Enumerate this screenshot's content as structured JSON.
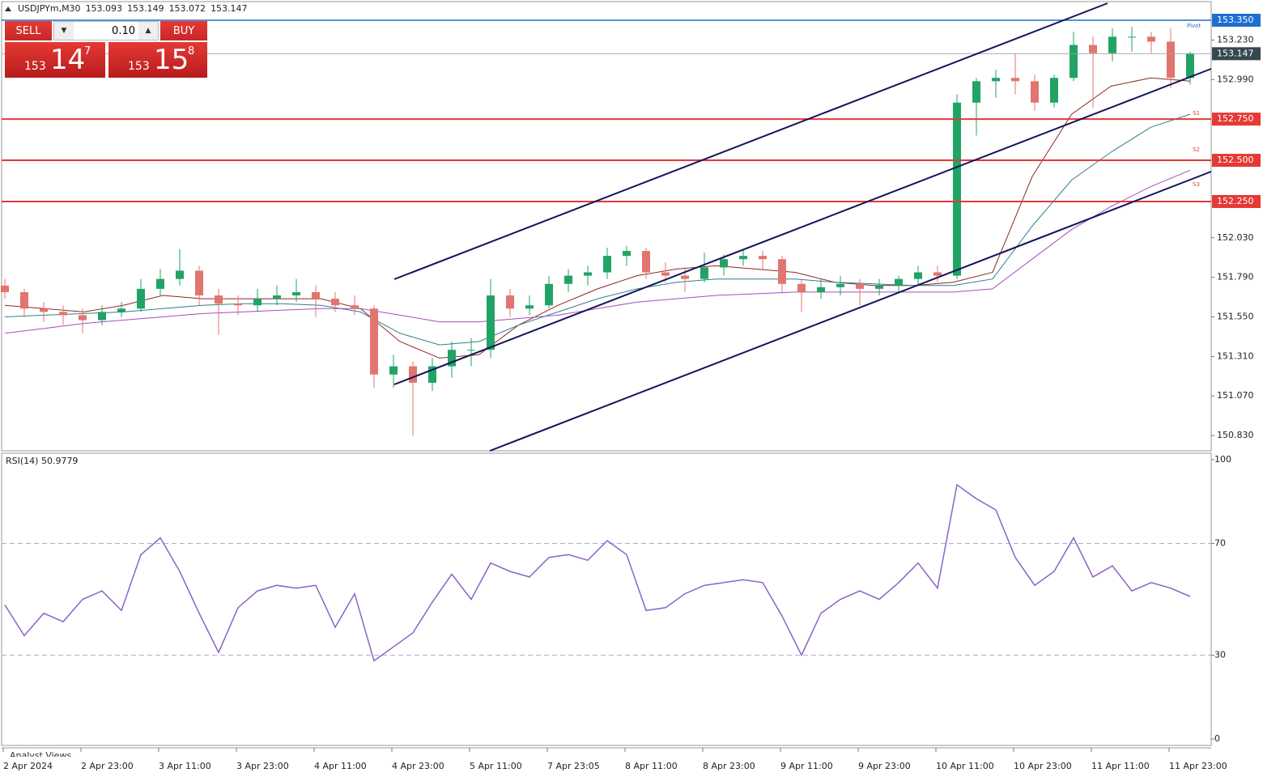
{
  "header": {
    "symbol": "USDJPYm,M30",
    "quote": [
      153.093,
      153.149,
      153.072,
      153.147
    ]
  },
  "trade_panel": {
    "sell": "SELL",
    "lot": "0.10",
    "buy": "BUY",
    "bid": [
      "153",
      "14",
      "7"
    ],
    "ask": [
      "153",
      "15",
      "8"
    ]
  },
  "footer": "Analyst Views",
  "chart_data": [
    {
      "type": "candlestick",
      "categories": [
        "2 Apr 2024",
        "2 Apr 23:00",
        "3 Apr 11:00",
        "3 Apr 23:00",
        "4 Apr 11:00",
        "4 Apr 23:00",
        "5 Apr 11:00",
        "7 Apr 23:05",
        "8 Apr 11:00",
        "8 Apr 23:00",
        "9 Apr 11:00",
        "9 Apr 23:00",
        "10 Apr 11:00",
        "10 Apr 23:00",
        "11 Apr 11:00",
        "11 Apr 23:00"
      ],
      "open": [
        151.74,
        151.7,
        151.6,
        151.58,
        151.56,
        151.53,
        151.58,
        151.6,
        151.72,
        151.78,
        151.83,
        151.68,
        151.63,
        151.62,
        151.66,
        151.68,
        151.7,
        151.66,
        151.62,
        151.6,
        151.2,
        151.25,
        151.15,
        151.25,
        151.35,
        151.35,
        151.68,
        151.6,
        151.62,
        151.75,
        151.8,
        151.82,
        151.92,
        151.95,
        151.82,
        151.8,
        151.78,
        151.85,
        151.9,
        151.92,
        151.9,
        151.75,
        151.7,
        151.73,
        151.75,
        151.72,
        151.74,
        151.78,
        151.82,
        151.8,
        152.85,
        152.98,
        153.0,
        152.98,
        152.85,
        153.0,
        153.2,
        153.15,
        153.25,
        153.25,
        153.22,
        153.0
      ],
      "high": [
        151.78,
        151.72,
        151.64,
        151.62,
        151.6,
        151.62,
        151.64,
        151.78,
        151.84,
        151.96,
        151.86,
        151.72,
        151.68,
        151.72,
        151.74,
        151.78,
        151.74,
        151.7,
        151.68,
        151.62,
        151.32,
        151.28,
        151.3,
        151.4,
        151.42,
        151.78,
        151.72,
        151.68,
        151.8,
        151.84,
        151.86,
        151.97,
        151.98,
        151.97,
        151.88,
        151.85,
        151.94,
        151.93,
        151.96,
        151.95,
        151.92,
        151.78,
        151.78,
        151.8,
        151.78,
        151.78,
        151.8,
        151.86,
        151.86,
        152.9,
        153.0,
        153.05,
        153.15,
        153.02,
        153.02,
        153.28,
        153.25,
        153.3,
        153.31,
        153.28,
        153.3,
        153.16
      ],
      "low": [
        151.66,
        151.55,
        151.52,
        151.5,
        151.45,
        151.5,
        151.55,
        151.58,
        151.68,
        151.74,
        151.62,
        151.44,
        151.56,
        151.58,
        151.62,
        151.64,
        151.55,
        151.58,
        151.56,
        151.12,
        151.12,
        150.83,
        151.1,
        151.18,
        151.25,
        151.3,
        151.55,
        151.56,
        151.6,
        151.7,
        151.74,
        151.78,
        151.86,
        151.78,
        151.76,
        151.7,
        151.76,
        151.8,
        151.86,
        151.84,
        151.7,
        151.58,
        151.66,
        151.68,
        151.62,
        151.68,
        151.7,
        151.74,
        151.76,
        151.78,
        152.65,
        152.88,
        152.9,
        152.8,
        152.82,
        152.98,
        152.82,
        153.1,
        153.16,
        153.15,
        152.94,
        152.96
      ],
      "close": [
        151.7,
        151.6,
        151.58,
        151.56,
        151.53,
        151.58,
        151.6,
        151.72,
        151.78,
        151.83,
        151.68,
        151.63,
        151.62,
        151.66,
        151.68,
        151.7,
        151.66,
        151.62,
        151.6,
        151.2,
        151.25,
        151.15,
        151.25,
        151.35,
        151.35,
        151.68,
        151.6,
        151.62,
        151.75,
        151.8,
        151.82,
        151.92,
        151.95,
        151.82,
        151.8,
        151.78,
        151.85,
        151.9,
        151.92,
        151.9,
        151.75,
        151.7,
        151.73,
        151.75,
        151.72,
        151.74,
        151.78,
        151.82,
        151.8,
        152.85,
        152.98,
        153.0,
        152.98,
        152.85,
        153.0,
        153.2,
        153.15,
        153.25,
        153.25,
        153.22,
        153.0,
        153.147
      ],
      "up_color": "#22a366",
      "down_color": "#e0766f",
      "moving_averages": [
        {
          "color": "#8b2a1e",
          "values": [
            151.62,
            151.6,
            151.58,
            151.62,
            151.68,
            151.66,
            151.66,
            151.66,
            151.66,
            151.6,
            151.4,
            151.3,
            151.32,
            151.5,
            151.62,
            151.72,
            151.8,
            151.84,
            151.86,
            151.84,
            151.82,
            151.76,
            151.74,
            151.74,
            151.76,
            151.82,
            152.4,
            152.78,
            152.95,
            153.0,
            152.98
          ]
        },
        {
          "color": "#2f7f8a",
          "values": [
            151.55,
            151.56,
            151.57,
            151.58,
            151.6,
            151.62,
            151.63,
            151.63,
            151.62,
            151.58,
            151.45,
            151.38,
            151.4,
            151.5,
            151.58,
            151.66,
            151.72,
            151.76,
            151.78,
            151.78,
            151.78,
            151.76,
            151.75,
            151.74,
            151.74,
            151.78,
            152.1,
            152.38,
            152.55,
            152.7,
            152.78
          ]
        },
        {
          "color": "#a44dbf",
          "values": [
            151.45,
            151.48,
            151.51,
            151.53,
            151.55,
            151.57,
            151.58,
            151.59,
            151.6,
            151.6,
            151.56,
            151.52,
            151.52,
            151.54,
            151.56,
            151.6,
            151.64,
            151.66,
            151.68,
            151.69,
            151.7,
            151.7,
            151.7,
            151.7,
            151.7,
            151.72,
            151.9,
            152.08,
            152.22,
            152.34,
            152.44
          ]
        }
      ],
      "ylim": [
        150.737,
        153.463
      ],
      "yticks": [
        {
          "value": 153.23,
          "label": "153.230"
        },
        {
          "value": 152.99,
          "label": "152.990"
        },
        {
          "value": 152.03,
          "label": "152.030"
        },
        {
          "value": 151.79,
          "label": "151.790"
        },
        {
          "value": 151.55,
          "label": "151.550"
        },
        {
          "value": 151.31,
          "label": "151.310"
        },
        {
          "value": 151.07,
          "label": "151.070"
        },
        {
          "value": 150.83,
          "label": "150.830"
        }
      ],
      "levels": [
        {
          "value": 153.35,
          "label": "153.350",
          "color": "#1e6fd0",
          "label_color": "#1e6fd0"
        },
        {
          "value": 153.147,
          "label": "153.147",
          "color": "#9aa3a8",
          "label_color": "#37474f"
        },
        {
          "value": 152.75,
          "label": "152.750",
          "color": "#e53935",
          "label_color": "#e53935"
        },
        {
          "value": 152.5,
          "label": "152.500",
          "color": "#e53935",
          "label_color": "#e53935"
        },
        {
          "value": 152.25,
          "label": "152.250",
          "color": "#e53935",
          "label_color": "#e53935"
        }
      ],
      "annotations": [
        "Pivot",
        "S1",
        "S2",
        "S3"
      ]
    },
    {
      "type": "line",
      "title": "RSI(14) 50.9779",
      "color": "#8a63c7",
      "values": [
        48,
        37,
        45,
        42,
        50,
        53,
        46,
        66,
        72,
        60,
        45,
        31,
        47,
        53,
        55,
        54,
        55,
        40,
        52,
        28,
        33,
        38,
        49,
        59,
        50,
        63,
        60,
        58,
        65,
        66,
        64,
        71,
        66,
        46,
        47,
        52,
        55,
        56,
        57,
        56,
        44,
        30,
        45,
        50,
        53,
        50,
        56,
        63,
        54,
        91,
        86,
        82,
        65,
        55,
        60,
        72,
        58,
        62,
        53,
        56,
        54,
        51
      ],
      "ylim": [
        -2.3,
        102
      ],
      "yticks": [
        100,
        70,
        30,
        0
      ],
      "levels": [
        70,
        30
      ]
    }
  ]
}
